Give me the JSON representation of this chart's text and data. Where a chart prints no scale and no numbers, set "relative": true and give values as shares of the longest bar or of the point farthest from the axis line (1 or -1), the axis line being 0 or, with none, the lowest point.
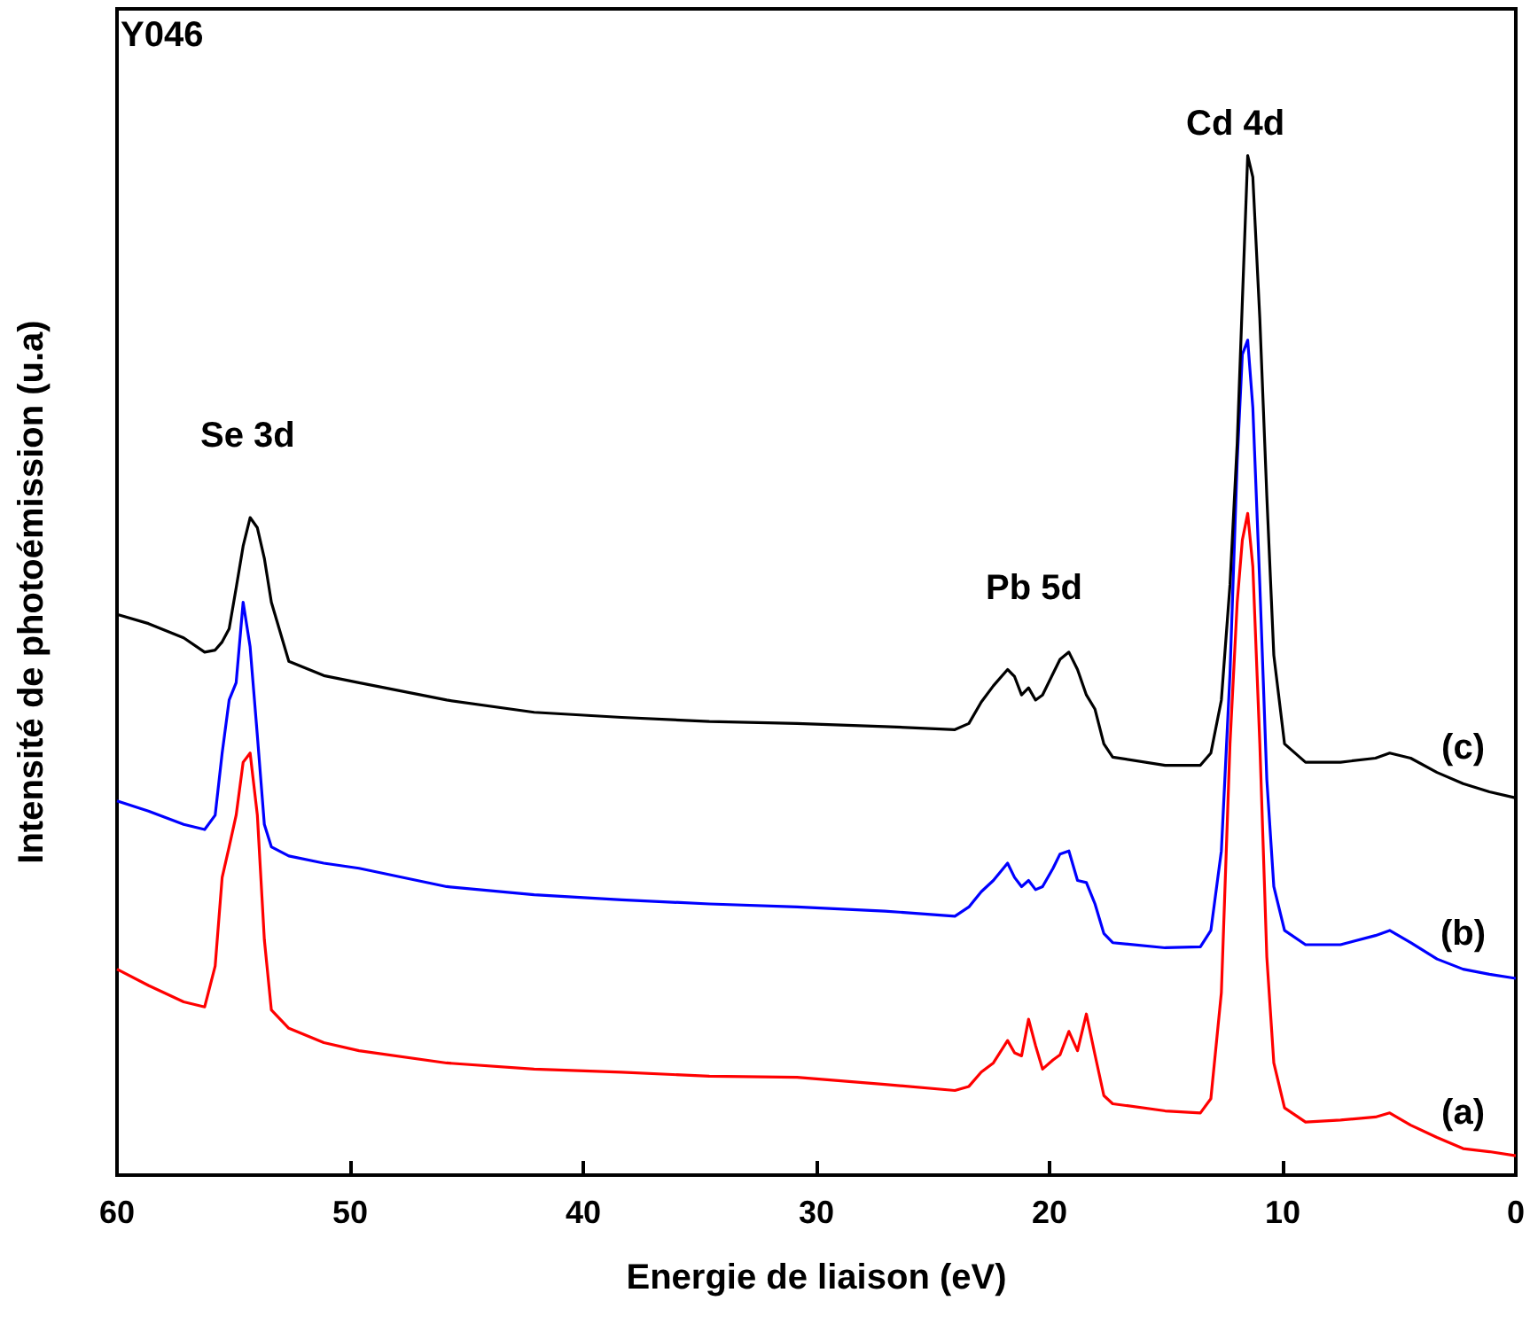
{
  "chart_data": {
    "type": "line",
    "relative": true,
    "xlabel": "Energie de liaison (eV)",
    "ylabel": "Intensité de photoémission (u.a)",
    "xlim": [
      60,
      0
    ],
    "xticks": [
      60,
      50,
      40,
      30,
      20,
      10,
      0
    ],
    "marker": "none",
    "annotations": [
      "Y046",
      "Se 3d",
      "Pb 5d",
      "Cd 4d"
    ],
    "x": [
      60,
      58.65,
      57.14,
      56.24,
      55.79,
      55.49,
      55.19,
      54.89,
      54.59,
      54.29,
      53.98,
      53.68,
      53.38,
      52.63,
      51.13,
      49.62,
      45.86,
      42.11,
      38.35,
      34.59,
      30.83,
      27.07,
      24.06,
      23.46,
      22.93,
      22.41,
      21.8,
      21.5,
      21.2,
      20.9,
      20.6,
      20.3,
      19.85,
      19.55,
      19.17,
      18.8,
      18.42,
      18.05,
      17.67,
      17.29,
      15.04,
      13.53,
      13.08,
      12.63,
      12.26,
      11.95,
      11.73,
      11.5,
      11.28,
      10.98,
      10.68,
      10.38,
      9.92,
      9.02,
      7.52,
      6.02,
      5.41,
      4.51,
      3.38,
      2.26,
      1.13,
      0
    ],
    "series": [
      {
        "name": "(a)",
        "color": "#ff0000",
        "values": [
          0.202,
          0.186,
          0.17,
          0.165,
          0.205,
          0.292,
          0.322,
          0.353,
          0.405,
          0.414,
          0.353,
          0.231,
          0.162,
          0.144,
          0.13,
          0.122,
          0.11,
          0.104,
          0.101,
          0.097,
          0.096,
          0.089,
          0.083,
          0.087,
          0.101,
          0.11,
          0.132,
          0.12,
          0.117,
          0.153,
          0.127,
          0.104,
          0.113,
          0.118,
          0.141,
          0.122,
          0.158,
          0.118,
          0.078,
          0.07,
          0.063,
          0.061,
          0.075,
          0.179,
          0.423,
          0.562,
          0.623,
          0.649,
          0.597,
          0.423,
          0.214,
          0.11,
          0.066,
          0.052,
          0.054,
          0.057,
          0.061,
          0.049,
          0.037,
          0.026,
          0.023,
          0.019
        ]
      },
      {
        "name": "(b)",
        "color": "#0000ff",
        "values": [
          0.367,
          0.357,
          0.344,
          0.339,
          0.353,
          0.414,
          0.466,
          0.483,
          0.562,
          0.518,
          0.431,
          0.344,
          0.322,
          0.313,
          0.306,
          0.301,
          0.283,
          0.275,
          0.27,
          0.266,
          0.263,
          0.259,
          0.254,
          0.263,
          0.278,
          0.289,
          0.306,
          0.292,
          0.283,
          0.289,
          0.28,
          0.283,
          0.301,
          0.315,
          0.318,
          0.289,
          0.287,
          0.266,
          0.237,
          0.228,
          0.223,
          0.224,
          0.24,
          0.318,
          0.492,
          0.701,
          0.805,
          0.819,
          0.753,
          0.579,
          0.388,
          0.283,
          0.24,
          0.226,
          0.226,
          0.235,
          0.24,
          0.228,
          0.212,
          0.202,
          0.197,
          0.193
        ]
      },
      {
        "name": "(c)",
        "color": "#000000",
        "values": [
          0.55,
          0.541,
          0.527,
          0.513,
          0.515,
          0.523,
          0.536,
          0.576,
          0.617,
          0.645,
          0.635,
          0.605,
          0.562,
          0.504,
          0.49,
          0.483,
          0.466,
          0.454,
          0.449,
          0.445,
          0.443,
          0.44,
          0.437,
          0.443,
          0.464,
          0.48,
          0.496,
          0.489,
          0.471,
          0.478,
          0.466,
          0.471,
          0.492,
          0.506,
          0.513,
          0.496,
          0.471,
          0.457,
          0.423,
          0.41,
          0.402,
          0.402,
          0.414,
          0.466,
          0.579,
          0.718,
          0.857,
          1.0,
          0.979,
          0.84,
          0.666,
          0.51,
          0.423,
          0.405,
          0.405,
          0.409,
          0.414,
          0.409,
          0.395,
          0.384,
          0.376,
          0.37
        ]
      }
    ]
  }
}
